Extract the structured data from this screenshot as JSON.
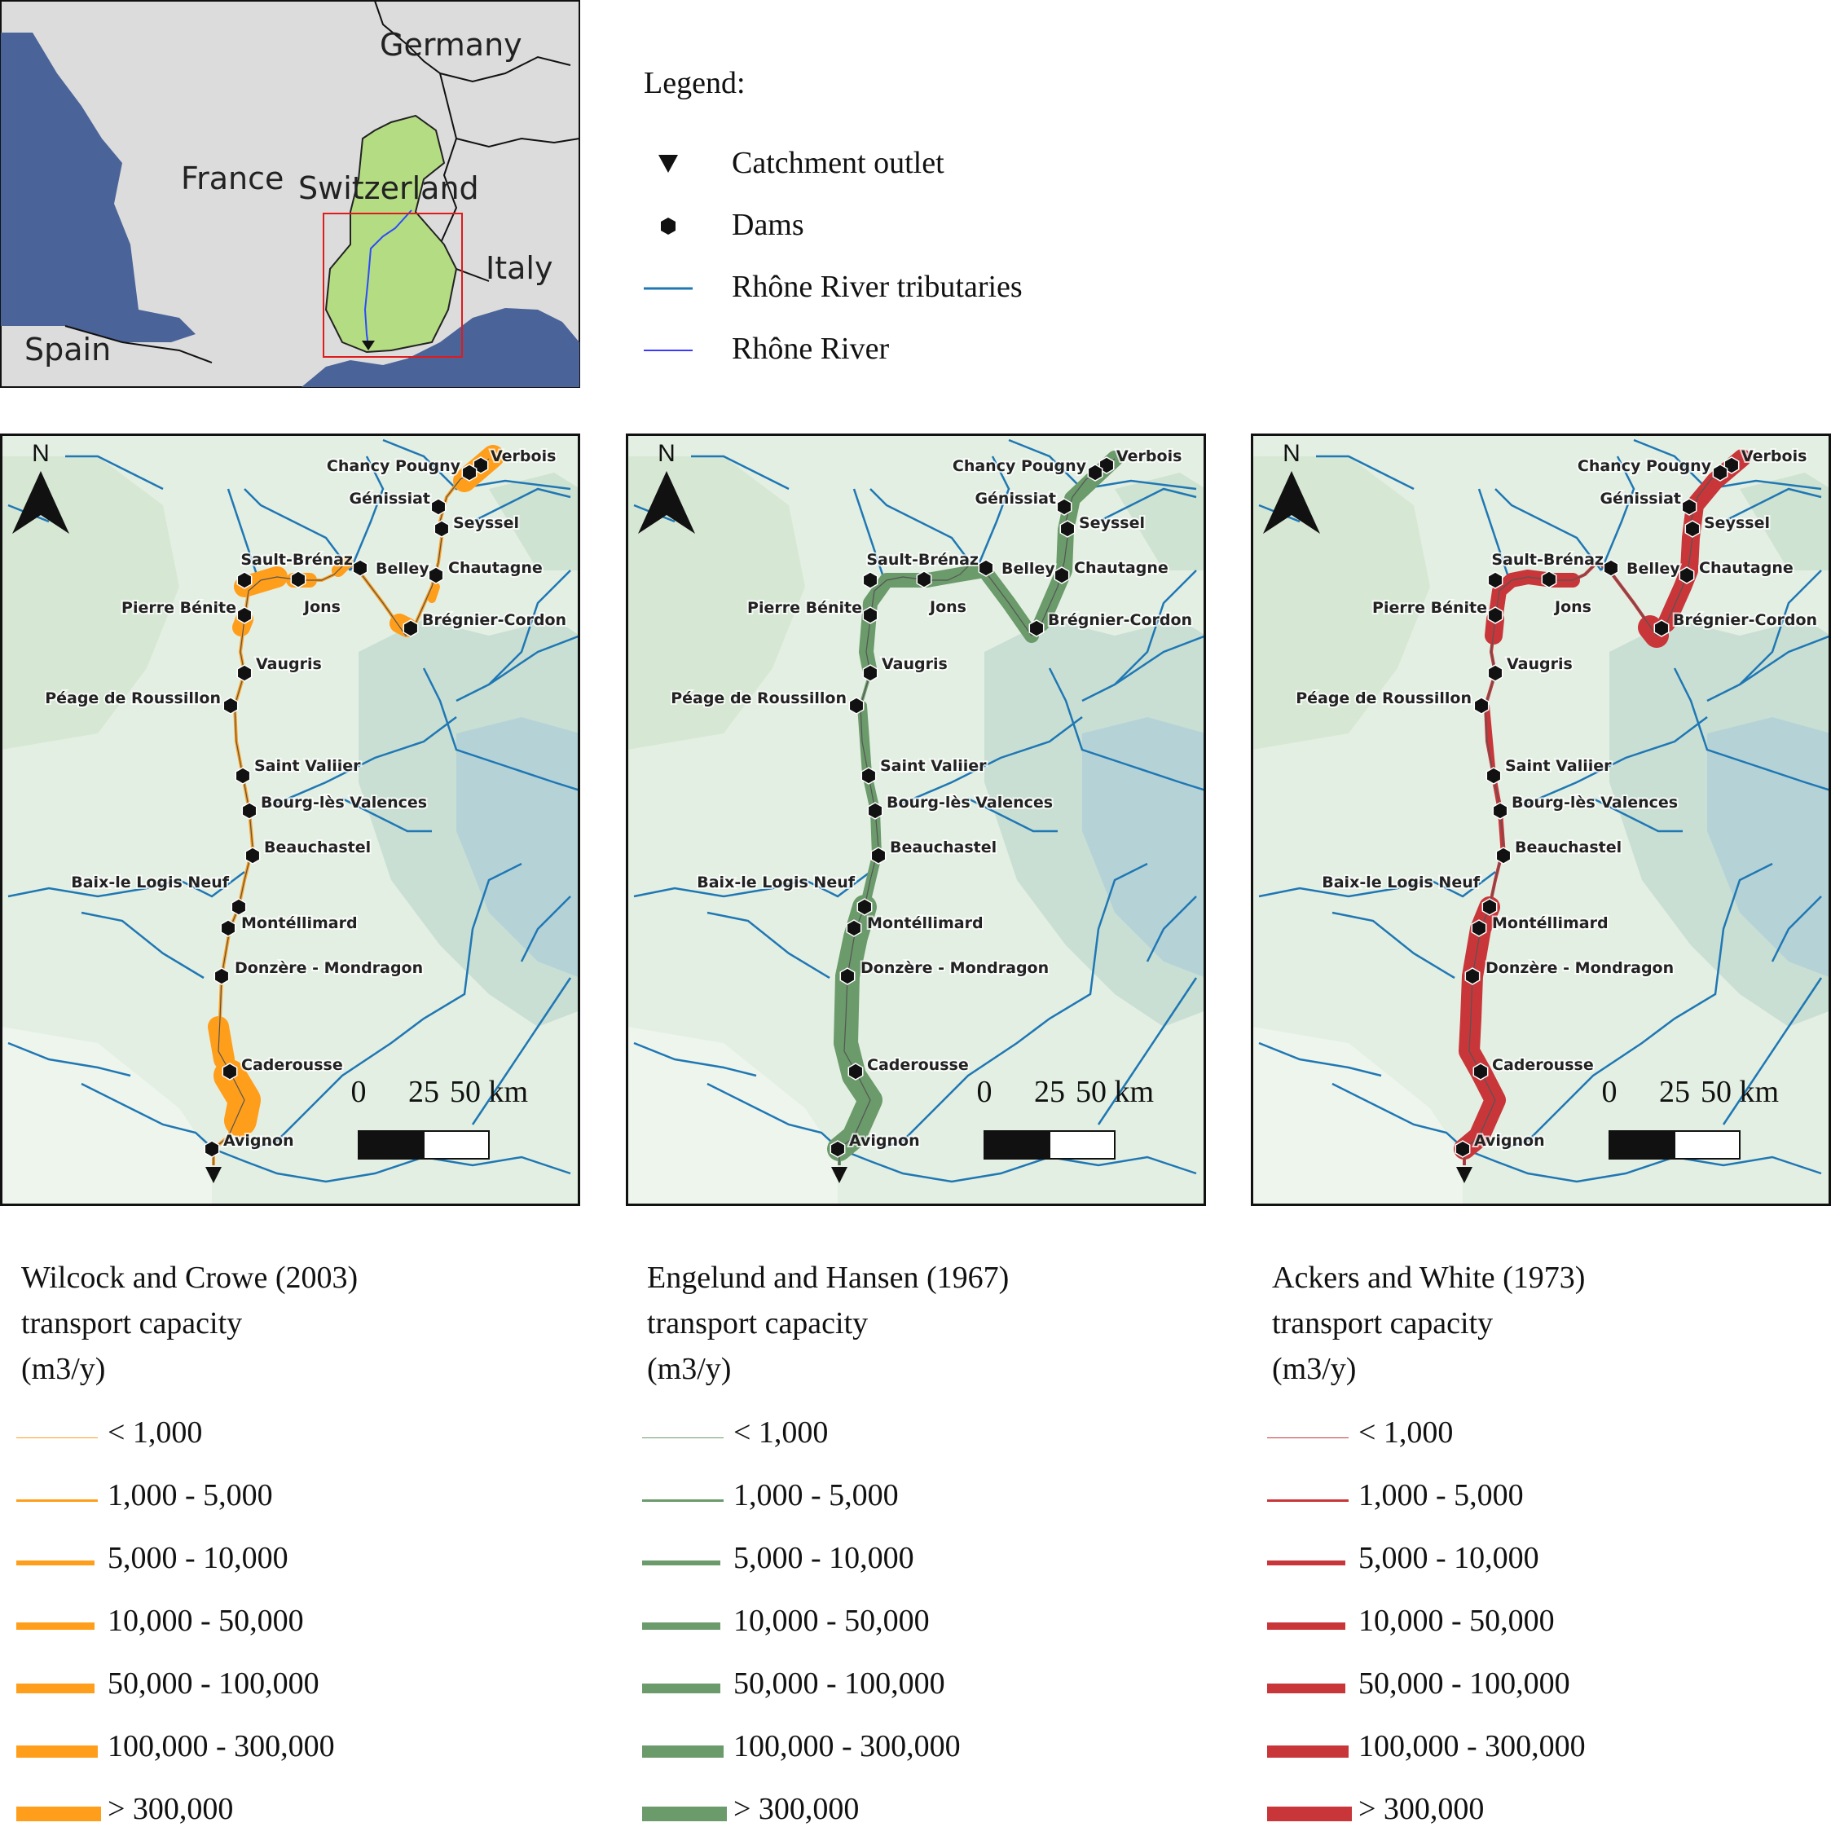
{
  "inset_map": {
    "countries": [
      "Germany",
      "France",
      "Switzerland",
      "Italy",
      "Spain"
    ],
    "colors": {
      "land": "#dcdcdc",
      "sea": "#4a6399",
      "catchment": "#b4dc82",
      "box": "#e01b1b"
    }
  },
  "legend": {
    "title": "Legend:",
    "items": [
      {
        "symbol": "triangle-down-icon",
        "label": "Catchment outlet"
      },
      {
        "symbol": "hexagon-icon",
        "label": "Dams"
      },
      {
        "symbol": "line-icon",
        "label": "Rhône River tributaries",
        "color": "#1f77b4"
      },
      {
        "symbol": "line-icon",
        "label": "Rhône River",
        "color": "#3a3aff"
      }
    ]
  },
  "map_common": {
    "north_label": "N",
    "scale_labels": [
      "0",
      "25",
      "50 km"
    ],
    "dams": [
      "Verbois",
      "Chancy Pougny",
      "Génissiat",
      "Seyssel",
      "Chautagne",
      "Belley",
      "Brégnier-Cordon",
      "Sault-Brénaz",
      "Jons",
      "Pierre Bénite",
      "Vaugris",
      "Péage de Roussillon",
      "Saint Valiier",
      "Bourg-lès Valences",
      "Beauchastel",
      "Baix-le Logis Neuf",
      "Montéllimard",
      "Donzère - Mondragon",
      "Caderousse",
      "Avignon"
    ]
  },
  "panels": [
    {
      "id": "wilcock",
      "color": "#ff9e1b",
      "title_lines": [
        "Wilcock and Crowe (2003)",
        "transport capacity",
        "(m3/y)"
      ]
    },
    {
      "id": "engelund",
      "color": "#6b9a6b",
      "title_lines": [
        "Engelund and Hansen (1967)",
        "transport capacity",
        "(m3/y)"
      ]
    },
    {
      "id": "ackers",
      "color": "#c8363a",
      "title_lines": [
        "Ackers and White (1973)",
        "transport capacity",
        "(m3/y)"
      ]
    }
  ],
  "capacity_classes": [
    "< 1,000",
    "1,000 - 5,000",
    "5,000 - 10,000",
    "10,000 - 50,000",
    "50,000 - 100,000",
    "100,000 - 300,000",
    "> 300,000"
  ]
}
